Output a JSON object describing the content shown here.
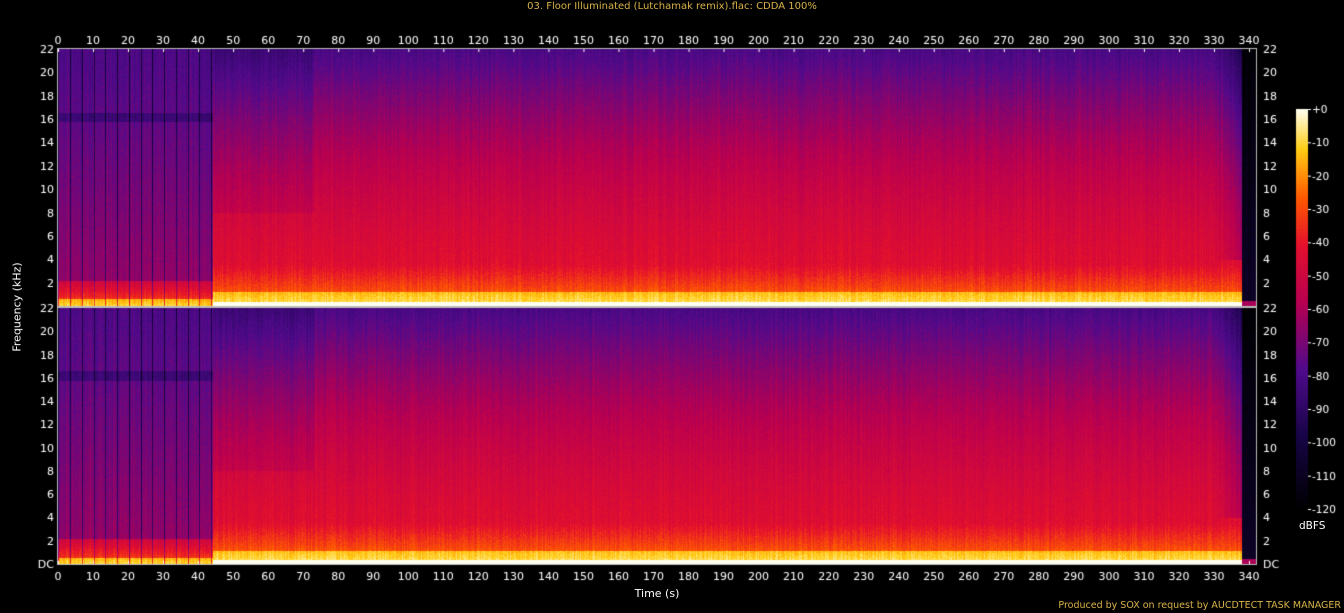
{
  "title": "03. Floor Illuminated (Lutchamak remix).flac: CDDA 100%",
  "credit": "Produced by SOX on request by AUCDTECT TASK MANAGER",
  "colors": {
    "text": "#ffffff",
    "title": "#d8b24a",
    "background": "#000000"
  },
  "chart_data": {
    "type": "heatmap",
    "title": "03. Floor Illuminated (Lutchamak remix).flac: CDDA 100%",
    "xlabel": "Time (s)",
    "ylabel": "Frequency (kHz)",
    "xlim": [
      0,
      342
    ],
    "ylim": [
      0,
      22
    ],
    "x_ticks": [
      0,
      10,
      20,
      30,
      40,
      50,
      60,
      70,
      80,
      90,
      100,
      110,
      120,
      130,
      140,
      150,
      160,
      170,
      180,
      190,
      200,
      210,
      220,
      230,
      240,
      250,
      260,
      270,
      280,
      290,
      300,
      310,
      320,
      330,
      340
    ],
    "y_ticks": [
      "DC",
      "2",
      "4",
      "6",
      "8",
      "10",
      "12",
      "14",
      "16",
      "18",
      "20",
      "22"
    ],
    "y_ticks_top": [
      "2",
      "4",
      "6",
      "8",
      "10",
      "12",
      "14",
      "16",
      "18",
      "20",
      "22"
    ],
    "channels": 2,
    "colorbar": {
      "unit": "dBFS",
      "ticks": [
        "+0",
        "-10",
        "-20",
        "-30",
        "-40",
        "-50",
        "-60",
        "-70",
        "-80",
        "-90",
        "-100",
        "-110",
        "-120"
      ],
      "range": [
        -120,
        0
      ]
    },
    "sections": [
      {
        "start": 0,
        "end": 44,
        "description_level_db": -85,
        "beat_interval_s": 3.35
      },
      {
        "start": 44,
        "end": 73,
        "description_level_db": -70
      },
      {
        "start": 73,
        "end": 338,
        "description_level_db": -68
      },
      {
        "start": 338,
        "end": 342,
        "description_level_db": -120
      }
    ]
  }
}
